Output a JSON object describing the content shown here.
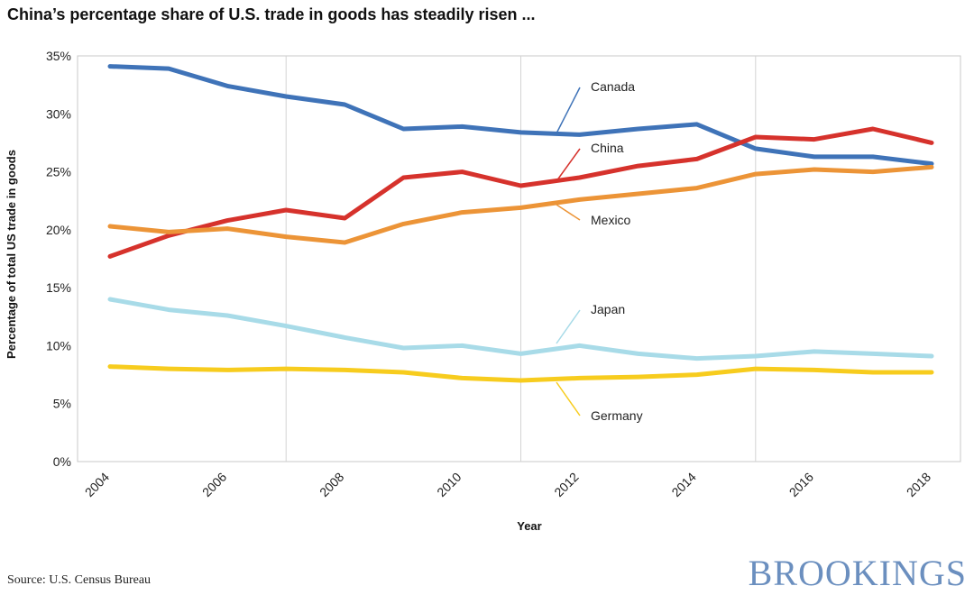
{
  "title": "China’s percentage share of U.S. trade in goods has steadily risen ...",
  "source": "Source: U.S. Census Bureau",
  "brand": "BROOKINGS",
  "chart_data": {
    "type": "line",
    "xlabel": "Year",
    "ylabel": "Percentage of total US trade in goods",
    "x": [
      2004,
      2005,
      2006,
      2007,
      2008,
      2009,
      2010,
      2011,
      2012,
      2013,
      2014,
      2015,
      2016,
      2017,
      2018
    ],
    "x_ticks": [
      "2004",
      "2006",
      "2008",
      "2010",
      "2012",
      "2014",
      "2016",
      "2018"
    ],
    "y_ticks": [
      "0%",
      "5%",
      "10%",
      "15%",
      "20%",
      "25%",
      "30%",
      "35%"
    ],
    "ylim": [
      0,
      35
    ],
    "grid": "vertical at even years",
    "series": [
      {
        "name": "Canada",
        "color": "#3f73b8",
        "values": [
          34.1,
          33.9,
          32.4,
          31.5,
          30.8,
          28.7,
          28.9,
          28.4,
          28.2,
          28.7,
          29.1,
          27.0,
          26.3,
          26.3,
          25.7
        ]
      },
      {
        "name": "China",
        "color": "#d6322c",
        "values": [
          17.7,
          19.5,
          20.8,
          21.7,
          21.0,
          24.5,
          25.0,
          23.8,
          24.5,
          25.5,
          26.1,
          28.0,
          27.8,
          28.7,
          27.5
        ]
      },
      {
        "name": "Mexico",
        "color": "#ec9437",
        "values": [
          20.3,
          19.8,
          20.1,
          19.4,
          18.9,
          20.5,
          21.5,
          21.9,
          22.6,
          23.1,
          23.6,
          24.8,
          25.2,
          25.0,
          25.4
        ]
      },
      {
        "name": "Japan",
        "color": "#a8dbe8",
        "values": [
          14.0,
          13.1,
          12.6,
          11.7,
          10.7,
          9.8,
          10.0,
          9.3,
          10.0,
          9.3,
          8.9,
          9.1,
          9.5,
          9.3,
          9.1
        ]
      },
      {
        "name": "Germany",
        "color": "#f7cc1e",
        "values": [
          8.2,
          8.0,
          7.9,
          8.0,
          7.9,
          7.7,
          7.2,
          7.0,
          7.2,
          7.3,
          7.5,
          8.0,
          7.9,
          7.7,
          7.7
        ]
      }
    ]
  }
}
